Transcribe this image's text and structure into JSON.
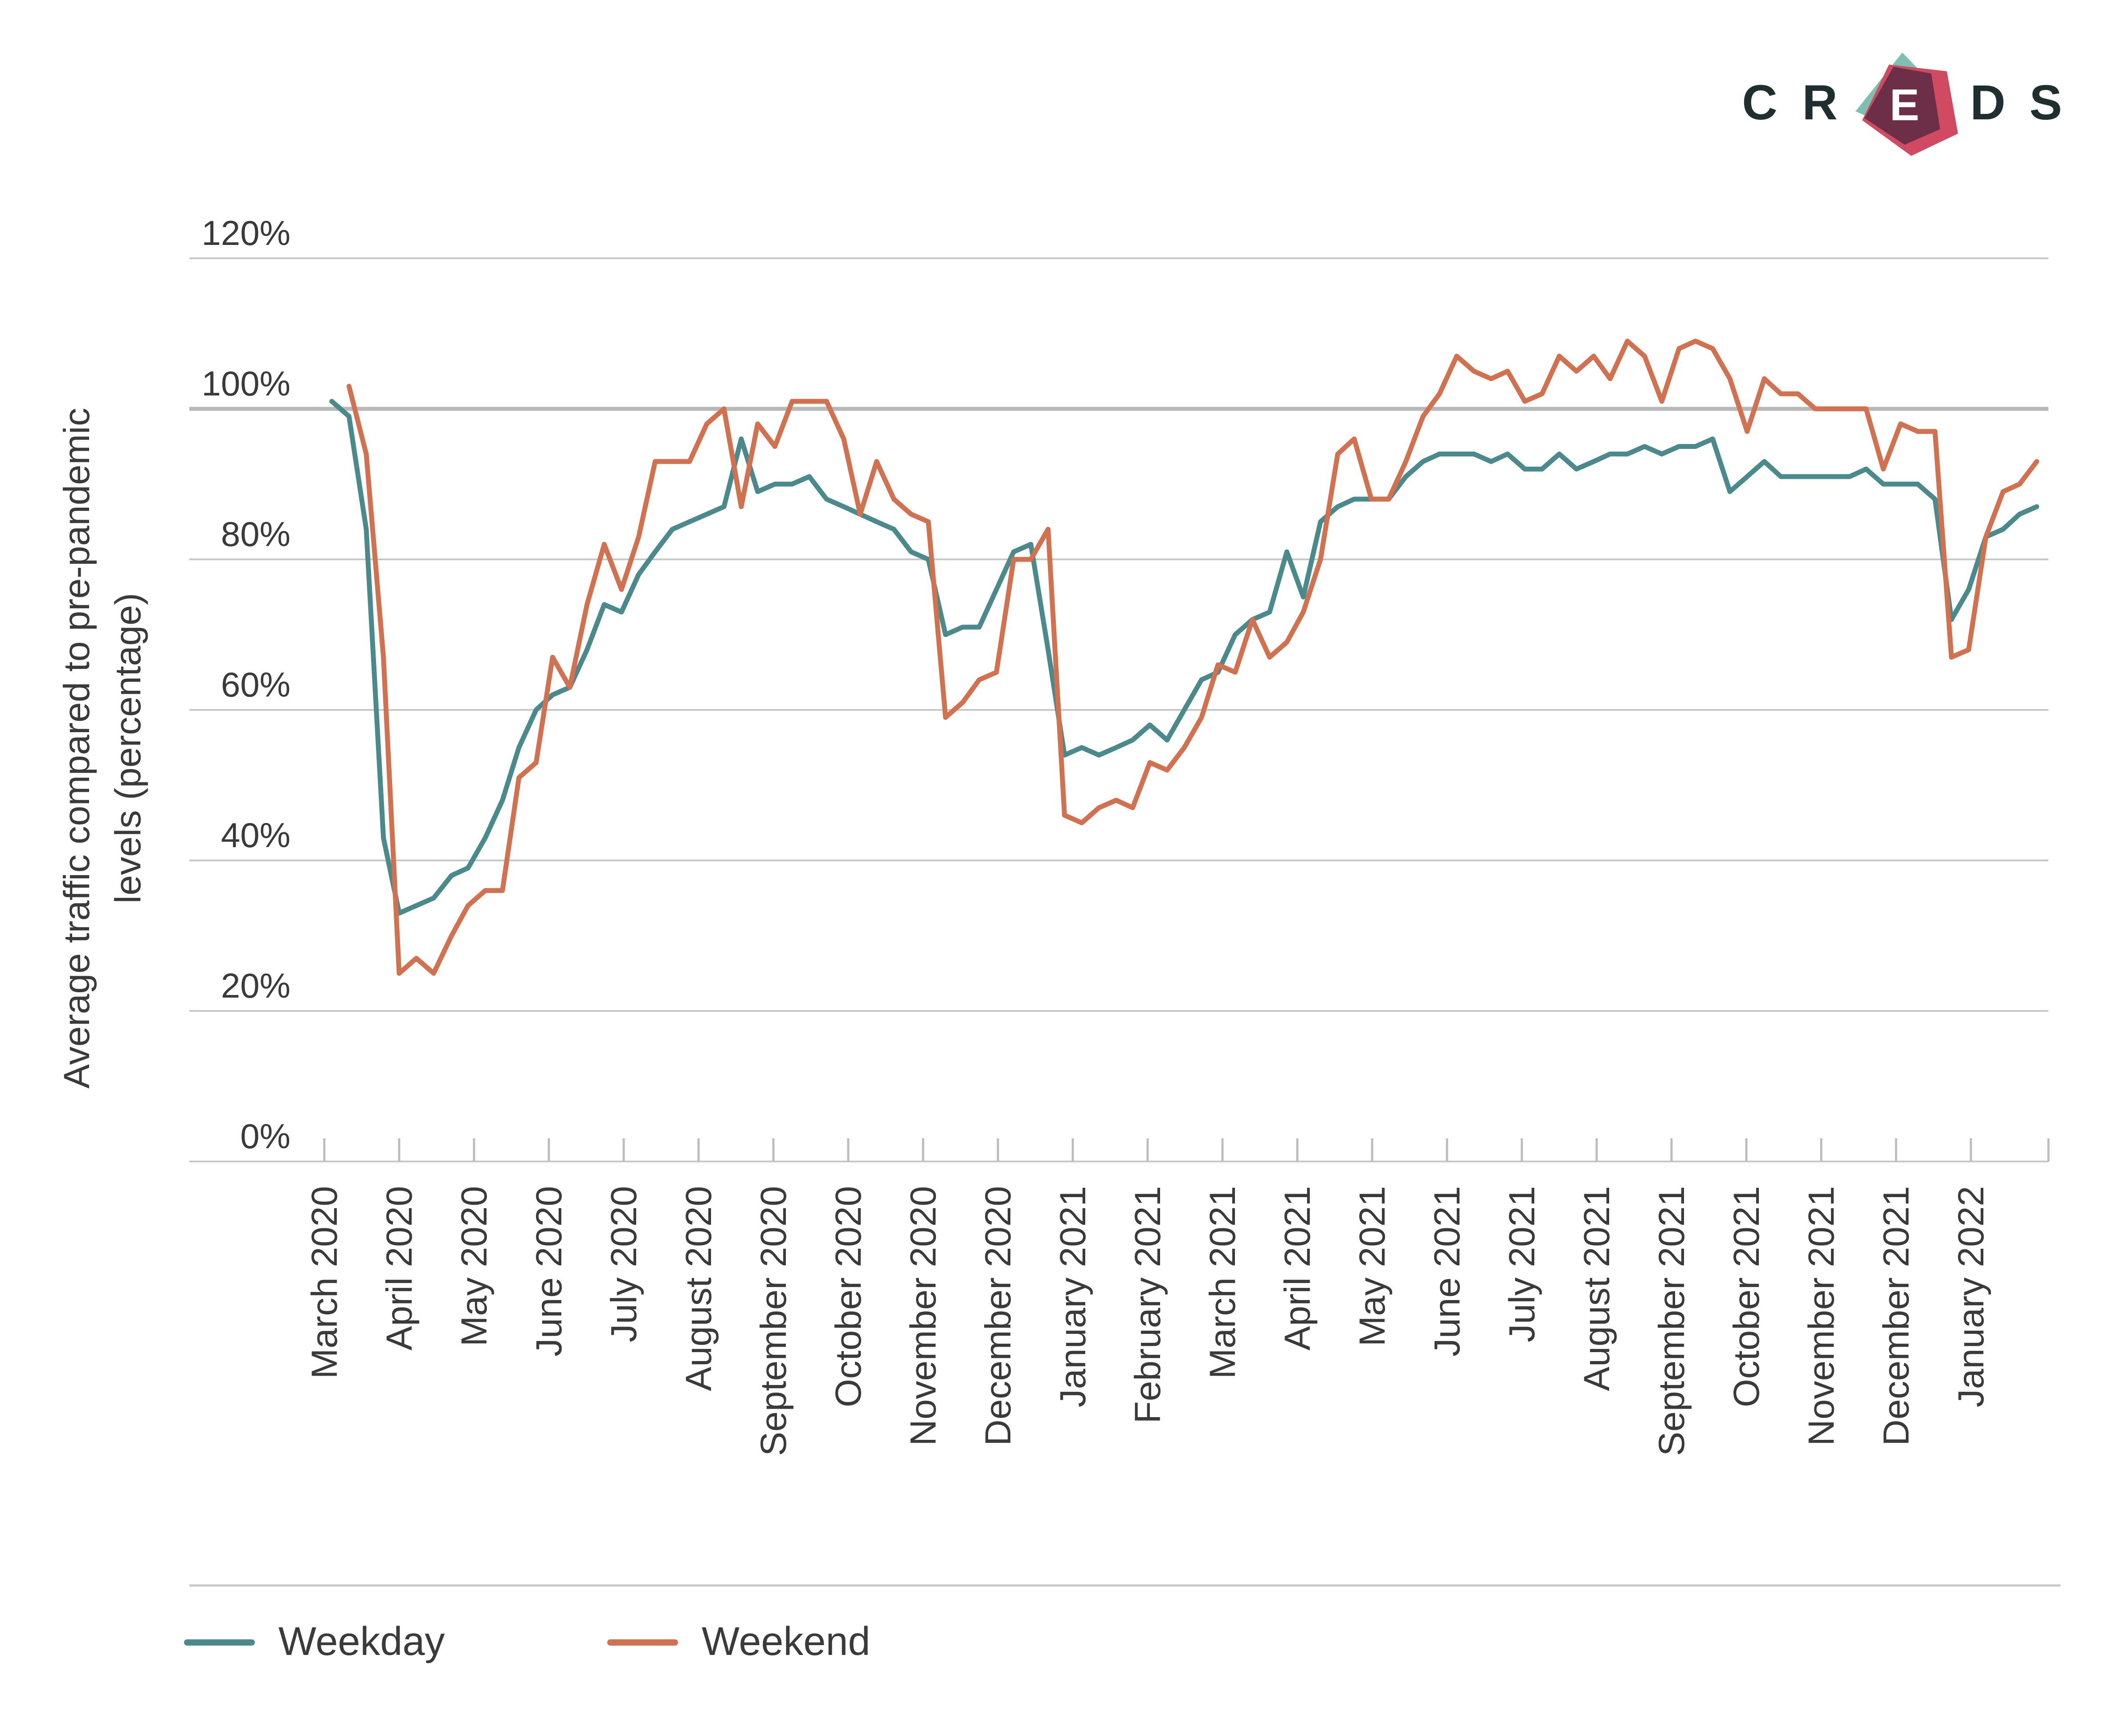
{
  "brand": {
    "letters": [
      "C",
      "R",
      "E",
      "D",
      "S"
    ],
    "colors": {
      "teal": "#7dbfb0",
      "red": "#d04b61",
      "dark": "#6d2f47",
      "text": "#1f2f2f"
    }
  },
  "colors": {
    "weekday": "#4a8a8c",
    "weekend": "#d2714f",
    "grid": "#c8c8c8",
    "axis": "#bdbdbd",
    "text": "#3a3a3a"
  },
  "chart_data": {
    "type": "line",
    "xlabel": "",
    "ylabel": "Average traffic compared to pre-pandemic levels (percentage)",
    "ylabel_lines": [
      "Average traffic compared to pre-pandemic",
      "levels (percentage)"
    ],
    "ylim": [
      0,
      120
    ],
    "yticks": [
      0,
      20,
      40,
      60,
      80,
      100,
      120
    ],
    "ytick_labels": [
      "0%",
      "20%",
      "40%",
      "60%",
      "80%",
      "100%",
      "120%"
    ],
    "reference_line": 100,
    "grid": true,
    "legend_position": "bottom-left",
    "x_unit": "months since start of March 2020",
    "categories": [
      "March 2020",
      "April 2020",
      "May 2020",
      "June 2020",
      "July 2020",
      "August 2020",
      "September 2020",
      "October 2020",
      "November 2020",
      "December 2020",
      "January 2021",
      "February 2021",
      "March 2021",
      "April 2021",
      "May 2021",
      "June 2021",
      "July 2021",
      "August 2021",
      "September 2021",
      "October 2021",
      "November 2021",
      "December 2021",
      "January 2022"
    ],
    "series": [
      {
        "name": "Weekday",
        "color": "#4a8a8c",
        "x": [
          0.1,
          0.33,
          0.56,
          0.79,
          1.0,
          1.23,
          1.46,
          1.7,
          1.92,
          2.15,
          2.38,
          2.6,
          2.83,
          3.05,
          3.28,
          3.51,
          3.74,
          3.97,
          4.2,
          4.42,
          4.65,
          4.88,
          5.11,
          5.34,
          5.57,
          5.79,
          6.02,
          6.25,
          6.48,
          6.71,
          6.94,
          7.16,
          7.38,
          7.61,
          7.84,
          8.07,
          8.3,
          8.53,
          8.75,
          8.98,
          9.21,
          9.44,
          9.67,
          9.89,
          10.12,
          10.35,
          10.58,
          10.8,
          11.03,
          11.26,
          11.49,
          11.72,
          11.94,
          12.17,
          12.4,
          12.63,
          12.86,
          13.08,
          13.31,
          13.54,
          13.76,
          13.99,
          14.22,
          14.45,
          14.68,
          14.9,
          15.13,
          15.36,
          15.59,
          15.81,
          16.04,
          16.27,
          16.5,
          16.73,
          16.96,
          17.18,
          17.41,
          17.64,
          17.87,
          18.1,
          18.32,
          18.55,
          18.78,
          19.01,
          19.24,
          19.46,
          19.69,
          19.92,
          20.15,
          20.38,
          20.6,
          20.83,
          21.06,
          21.29,
          21.52,
          21.74,
          21.97,
          22.2,
          22.43,
          22.65,
          22.88
        ],
        "values": [
          101,
          99,
          84,
          43,
          33,
          34,
          35,
          38,
          39,
          43,
          48,
          55,
          60,
          62,
          63,
          68,
          74,
          73,
          78,
          81,
          84,
          85,
          86,
          87,
          96,
          89,
          90,
          90,
          91,
          88,
          87,
          86,
          85,
          84,
          81,
          80,
          70,
          71,
          71,
          76,
          81,
          82,
          68,
          54,
          55,
          54,
          55,
          56,
          58,
          56,
          60,
          64,
          65,
          70,
          72,
          73,
          81,
          75,
          85,
          87,
          88,
          88,
          88,
          91,
          93,
          94,
          94,
          94,
          93,
          94,
          92,
          92,
          94,
          92,
          93,
          94,
          94,
          95,
          94,
          95,
          95,
          96,
          89,
          91,
          93,
          91,
          91,
          91,
          91,
          91,
          92,
          90,
          90,
          90,
          88,
          72,
          76,
          83,
          84,
          86,
          87
        ]
      },
      {
        "name": "Weekend",
        "color": "#d2714f",
        "x": [
          0.33,
          0.56,
          0.79,
          1.0,
          1.23,
          1.46,
          1.7,
          1.92,
          2.15,
          2.38,
          2.6,
          2.83,
          3.05,
          3.28,
          3.51,
          3.74,
          3.97,
          4.2,
          4.42,
          4.65,
          4.88,
          5.11,
          5.34,
          5.57,
          5.79,
          6.02,
          6.25,
          6.48,
          6.71,
          6.94,
          7.16,
          7.38,
          7.61,
          7.84,
          8.07,
          8.3,
          8.53,
          8.75,
          8.98,
          9.21,
          9.44,
          9.67,
          9.89,
          10.12,
          10.35,
          10.58,
          10.8,
          11.03,
          11.26,
          11.49,
          11.72,
          11.94,
          12.17,
          12.4,
          12.63,
          12.86,
          13.08,
          13.31,
          13.54,
          13.76,
          13.99,
          14.22,
          14.45,
          14.68,
          14.9,
          15.13,
          15.36,
          15.59,
          15.81,
          16.04,
          16.27,
          16.5,
          16.73,
          16.96,
          17.18,
          17.41,
          17.64,
          17.87,
          18.1,
          18.32,
          18.55,
          18.78,
          19.01,
          19.24,
          19.46,
          19.69,
          19.92,
          20.15,
          20.38,
          20.6,
          20.83,
          21.06,
          21.29,
          21.52,
          21.74,
          21.97,
          22.2,
          22.43,
          22.65,
          22.88
        ],
        "values": [
          103,
          94,
          67,
          25,
          27,
          25,
          30,
          34,
          36,
          36,
          51,
          53,
          67,
          63,
          74,
          82,
          76,
          83,
          93,
          93,
          93,
          98,
          100,
          87,
          98,
          95,
          101,
          101,
          101,
          96,
          86,
          93,
          88,
          86,
          85,
          59,
          61,
          64,
          65,
          80,
          80,
          84,
          46,
          45,
          47,
          48,
          47,
          53,
          52,
          55,
          59,
          66,
          65,
          72,
          67,
          69,
          73,
          80,
          94,
          96,
          88,
          88,
          93,
          99,
          102,
          107,
          105,
          104,
          105,
          101,
          102,
          107,
          105,
          107,
          104,
          109,
          107,
          101,
          108,
          109,
          108,
          104,
          97,
          104,
          102,
          102,
          100,
          100,
          100,
          100,
          92,
          98,
          97,
          97,
          67,
          68,
          83,
          89,
          90,
          93
        ]
      }
    ]
  }
}
